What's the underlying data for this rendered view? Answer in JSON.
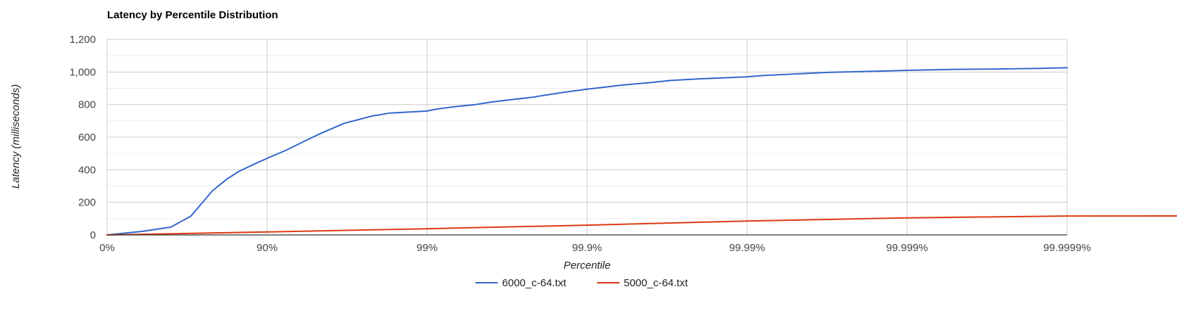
{
  "chart_data": {
    "type": "line",
    "title": "Latency by Percentile Distribution",
    "xlabel": "Percentile",
    "ylabel": "Latency (milliseconds)",
    "x_scale": "log-percentile (1/(1-p))",
    "x_ticks": [
      "0%",
      "90%",
      "99%",
      "99.9%",
      "99.99%",
      "99.999%",
      "99.9999%"
    ],
    "y_ticks": [
      "0",
      "200",
      "400",
      "600",
      "800",
      "1,000",
      "1,200"
    ],
    "ylim": [
      0,
      1200
    ],
    "grid": true,
    "legend_position": "bottom",
    "series": [
      {
        "name": "6000_c-64.txt",
        "color": "#3366cc",
        "points": [
          [
            "0%",
            0
          ],
          [
            "40%",
            22
          ],
          [
            "60%",
            48
          ],
          [
            "70%",
            115
          ],
          [
            "78%",
            270
          ],
          [
            "82%",
            340
          ],
          [
            "85%",
            390
          ],
          [
            "88%",
            435
          ],
          [
            "90%",
            470
          ],
          [
            "92.4%",
            520
          ],
          [
            "94%",
            570
          ],
          [
            "95.3%",
            620
          ],
          [
            "96.7%",
            685
          ],
          [
            "97.8%",
            730
          ],
          [
            "98.3%",
            748
          ],
          [
            "99%",
            760
          ],
          [
            "99.1%",
            770
          ],
          [
            "99.3%",
            785
          ],
          [
            "99.5%",
            800
          ],
          [
            "99.6%",
            815
          ],
          [
            "99.7%",
            830
          ],
          [
            "99.78%",
            845
          ],
          [
            "99.86%",
            875
          ],
          [
            "99.9%",
            895
          ],
          [
            "99.92%",
            905
          ],
          [
            "99.94%",
            920
          ],
          [
            "99.96%",
            935
          ],
          [
            "99.97%",
            948
          ],
          [
            "99.98%",
            958
          ],
          [
            "99.99%",
            970
          ],
          [
            "99.992%",
            978
          ],
          [
            "99.995%",
            988
          ],
          [
            "99.997%",
            998
          ],
          [
            "99.998%",
            1002
          ],
          [
            "99.999%",
            1010
          ],
          [
            "99.9993%",
            1013
          ],
          [
            "99.9995%",
            1016
          ],
          [
            "99.9997%",
            1018
          ],
          [
            "99.99985%",
            1022
          ],
          [
            "99.9999%",
            1026
          ]
        ]
      },
      {
        "name": "5000_c-64.txt",
        "color": "#dc3912",
        "points": [
          [
            "0%",
            0
          ],
          [
            "90%",
            18
          ],
          [
            "99%",
            38
          ],
          [
            "99.9%",
            60
          ],
          [
            "99.99%",
            85
          ],
          [
            "99.999%",
            105
          ],
          [
            "99.9999%",
            116
          ],
          [
            "99.99999%",
            117
          ]
        ]
      }
    ]
  }
}
